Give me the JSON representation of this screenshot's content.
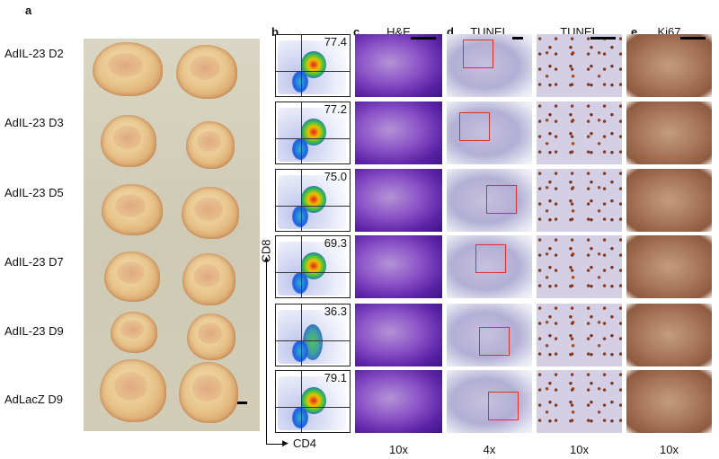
{
  "panels": {
    "a": "a",
    "b": "b",
    "c": "c",
    "d": "d",
    "e": "e"
  },
  "row_labels": [
    "AdIL-23 D2",
    "AdIL-23 D3",
    "AdIL-23 D5",
    "AdIL-23 D7",
    "AdIL-23 D9",
    "AdLacZ D9"
  ],
  "column_headers": {
    "c": "H&E",
    "d1": "TUNEL",
    "d2": "TUNEL",
    "e": "Ki67"
  },
  "magnifications": {
    "c": "10x",
    "d1": "4x",
    "d2": "10x",
    "e": "10x"
  },
  "flow": {
    "y_axis": "CD8",
    "x_axis": "CD4",
    "percentages": [
      "77.4",
      "77.2",
      "75.0",
      "69.3",
      "36.3",
      "79.1"
    ]
  },
  "colors": {
    "he_stain": "#6a2fb4",
    "tunel_box": "#e0302a",
    "ki67_stain": "#a9765a"
  }
}
